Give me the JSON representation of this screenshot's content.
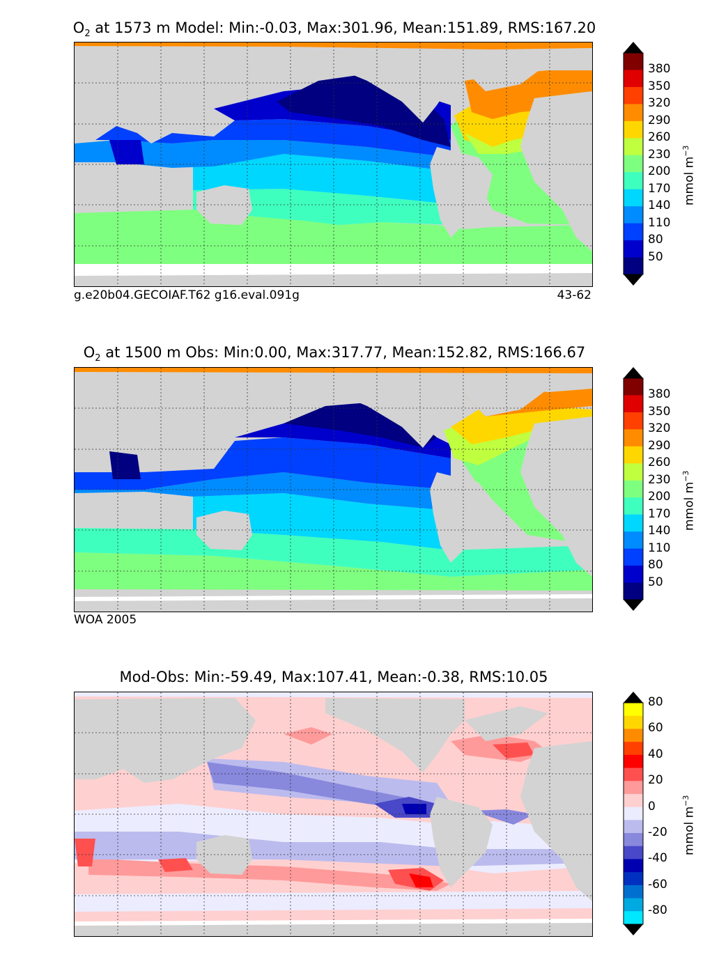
{
  "panels": [
    {
      "title_lead": "O",
      "title_sub": "2",
      "title_rest": " at 1573 m Model: Min:-0.03, Max:301.96, Mean:151.89, RMS:167.20",
      "caption_left": "g.e20b04.GECOIAF.T62 g16.eval.091g",
      "caption_right": "43-62",
      "colorbar": {
        "ticks": [
          "380",
          "350",
          "320",
          "290",
          "260",
          "230",
          "200",
          "170",
          "140",
          "110",
          "80",
          "50"
        ],
        "unit_text": "mmol m",
        "unit_sup": "−3",
        "colors": [
          "#800000",
          "#e00000",
          "#ff4000",
          "#ff8c00",
          "#ffd700",
          "#bfff3f",
          "#7fff7f",
          "#3fffbf",
          "#00d7ff",
          "#008cff",
          "#0040ff",
          "#0000cd",
          "#000080"
        ]
      }
    },
    {
      "title_lead": "O",
      "title_sub": "2",
      "title_rest": " at 1500 m Obs: Min:0.00, Max:317.77, Mean:152.82, RMS:166.67",
      "caption_left": "WOA 2005",
      "caption_right": "",
      "colorbar": {
        "ticks": [
          "380",
          "350",
          "320",
          "290",
          "260",
          "230",
          "200",
          "170",
          "140",
          "110",
          "80",
          "50"
        ],
        "unit_text": "mmol m",
        "unit_sup": "−3",
        "colors": [
          "#800000",
          "#e00000",
          "#ff4000",
          "#ff8c00",
          "#ffd700",
          "#bfff3f",
          "#7fff7f",
          "#3fffbf",
          "#00d7ff",
          "#008cff",
          "#0040ff",
          "#0000cd",
          "#000080"
        ]
      }
    },
    {
      "title_lead": "",
      "title_sub": "",
      "title_rest": "Mod-Obs: Min:-59.49, Max:107.41, Mean:-0.38, RMS:10.05",
      "caption_left": "",
      "caption_right": "",
      "colorbar": {
        "ticks": [
          "80",
          "60",
          "40",
          "20",
          "0",
          "-20",
          "-40",
          "-60",
          "-80"
        ],
        "unit_text": "mmol m",
        "unit_sup": "−3",
        "colors": [
          "#ffff00",
          "#ffd700",
          "#ff8c00",
          "#ff4000",
          "#ff0000",
          "#ff5050",
          "#ff9a9a",
          "#ffd0d0",
          "#ececff",
          "#bbbbee",
          "#8888dd",
          "#4848c8",
          "#0000b0",
          "#0030c0",
          "#0070d0",
          "#00aae0",
          "#00e8ff"
        ]
      }
    }
  ],
  "chart_data": [
    {
      "type": "heatmap",
      "title": "O2 at 1573 m Model: Min:-0.03, Max:301.96, Mean:151.89, RMS:167.20",
      "source": "g.e20b04.GECOIAF.T62 g16.eval.091g",
      "years": "43-62",
      "units": "mmol m-3",
      "statistics": {
        "min": -0.03,
        "max": 301.96,
        "mean": 151.89,
        "rms": 167.2
      },
      "colorbar_levels": [
        50,
        80,
        110,
        140,
        170,
        200,
        230,
        260,
        290,
        320,
        350,
        380
      ]
    },
    {
      "type": "heatmap",
      "title": "O2 at 1500 m Obs: Min:0.00, Max:317.77, Mean:152.82, RMS:166.67",
      "source": "WOA 2005",
      "units": "mmol m-3",
      "statistics": {
        "min": 0.0,
        "max": 317.77,
        "mean": 152.82,
        "rms": 166.67
      },
      "colorbar_levels": [
        50,
        80,
        110,
        140,
        170,
        200,
        230,
        260,
        290,
        320,
        350,
        380
      ]
    },
    {
      "type": "heatmap",
      "title": "Mod-Obs: Min:-59.49, Max:107.41, Mean:-0.38, RMS:10.05",
      "units": "mmol m-3",
      "statistics": {
        "min": -59.49,
        "max": 107.41,
        "mean": -0.38,
        "rms": 10.05
      },
      "colorbar_levels": [
        -80,
        -60,
        -40,
        -20,
        0,
        20,
        40,
        60,
        80
      ]
    }
  ]
}
